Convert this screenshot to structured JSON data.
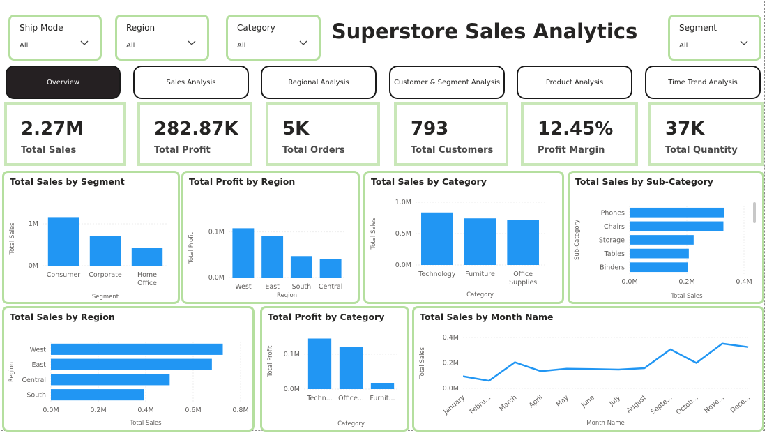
{
  "title": "Superstore Sales Analytics",
  "slicers": [
    {
      "label": "Ship Mode",
      "value": "All"
    },
    {
      "label": "Region",
      "value": "All"
    },
    {
      "label": "Category",
      "value": "All"
    },
    {
      "label": "Segment",
      "value": "All"
    }
  ],
  "nav": [
    {
      "label": "Overview",
      "active": true
    },
    {
      "label": "Sales Analysis"
    },
    {
      "label": "Regional Analysis"
    },
    {
      "label": "Customer & Segment Analysis"
    },
    {
      "label": "Product Analysis"
    },
    {
      "label": "Time Trend Analysis"
    }
  ],
  "kpis": [
    {
      "value": "2.27M",
      "label": "Total Sales"
    },
    {
      "value": "282.87K",
      "label": "Total Profit"
    },
    {
      "value": "5K",
      "label": "Total Orders"
    },
    {
      "value": "793",
      "label": "Total Customers"
    },
    {
      "value": "12.45%",
      "label": "Profit Margin"
    },
    {
      "value": "37K",
      "label": "Total Quantity"
    }
  ],
  "colors": {
    "bar": "#2196f3",
    "border": "#b5df9f",
    "nav_active": "#252022"
  },
  "chart_data": [
    {
      "type": "bar",
      "title": "Total Sales by Segment",
      "categories": [
        "Consumer",
        "Corporate",
        "Home Office"
      ],
      "values": [
        1160000,
        706000,
        429000
      ],
      "xlabel": "Segment",
      "ylabel": "Total Sales",
      "ylim": [
        0,
        1300000
      ],
      "yticks": [
        {
          "v": 0,
          "t": "0M"
        },
        {
          "v": 1000000,
          "t": "1M"
        }
      ]
    },
    {
      "type": "bar",
      "title": "Total Profit by Region",
      "categories": [
        "West",
        "East",
        "South",
        "Central"
      ],
      "values": [
        108000,
        91000,
        47000,
        40000
      ],
      "xlabel": "Region",
      "ylabel": "Total Profit",
      "ylim": [
        0,
        130000
      ],
      "yticks": [
        {
          "v": 0,
          "t": "0.0M"
        },
        {
          "v": 100000,
          "t": "0.1M"
        }
      ]
    },
    {
      "type": "bar",
      "title": "Total Sales by Category",
      "categories": [
        "Technology",
        "Furniture",
        "Office Supplies"
      ],
      "values": [
        836000,
        742000,
        719000
      ],
      "xlabel": "Category",
      "ylabel": "Total Sales",
      "ylim": [
        0,
        1000000
      ],
      "yticks": [
        {
          "v": 0,
          "t": "0.0M"
        },
        {
          "v": 500000,
          "t": "0.5M"
        },
        {
          "v": 1000000,
          "t": "1.0M"
        }
      ]
    },
    {
      "type": "hbar",
      "title": "Total Sales by Sub-Category",
      "categories": [
        "Phones",
        "Chairs",
        "Storage",
        "Tables",
        "Binders"
      ],
      "values": [
        330000,
        328000,
        224000,
        207000,
        203000
      ],
      "xlabel": "Total Sales",
      "ylabel": "Sub-Category",
      "xlim": [
        0,
        400000
      ],
      "xticks": [
        {
          "v": 0,
          "t": "0.0M"
        },
        {
          "v": 200000,
          "t": "0.2M"
        },
        {
          "v": 400000,
          "t": "0.4M"
        }
      ]
    },
    {
      "type": "hbar",
      "title": "Total Sales by Region",
      "categories": [
        "West",
        "East",
        "Central",
        "South"
      ],
      "values": [
        725000,
        679000,
        501000,
        392000
      ],
      "xlabel": "Total Sales",
      "ylabel": "Region",
      "xlim": [
        0,
        800000
      ],
      "xticks": [
        {
          "v": 0,
          "t": "0.0M"
        },
        {
          "v": 200000,
          "t": "0.2M"
        },
        {
          "v": 400000,
          "t": "0.4M"
        },
        {
          "v": 600000,
          "t": "0.6M"
        },
        {
          "v": 800000,
          "t": "0.8M"
        }
      ]
    },
    {
      "type": "bar",
      "title": "Total Profit by Category",
      "categories": [
        "Techn...",
        "Office...",
        "Furnit..."
      ],
      "values": [
        145000,
        122000,
        18000
      ],
      "xlabel": "Category",
      "ylabel": "Total Profit",
      "ylim": [
        0,
        160000
      ],
      "yticks": [
        {
          "v": 0,
          "t": "0.0M"
        },
        {
          "v": 100000,
          "t": "0.1M"
        }
      ]
    },
    {
      "type": "line",
      "title": "Total Sales by Month Name",
      "categories": [
        "January",
        "Febru...",
        "March",
        "April",
        "May",
        "June",
        "July",
        "August",
        "Septe...",
        "Octob...",
        "Nove...",
        "Dece..."
      ],
      "values": [
        95000,
        60000,
        205000,
        135000,
        155000,
        152000,
        148000,
        159000,
        307000,
        200000,
        352000,
        325000
      ],
      "xlabel": "Month Name",
      "ylabel": "Total Sales",
      "ylim": [
        0,
        400000
      ],
      "yticks": [
        {
          "v": 0,
          "t": "0.0M"
        },
        {
          "v": 200000,
          "t": "0.2M"
        },
        {
          "v": 400000,
          "t": "0.4M"
        }
      ]
    }
  ]
}
